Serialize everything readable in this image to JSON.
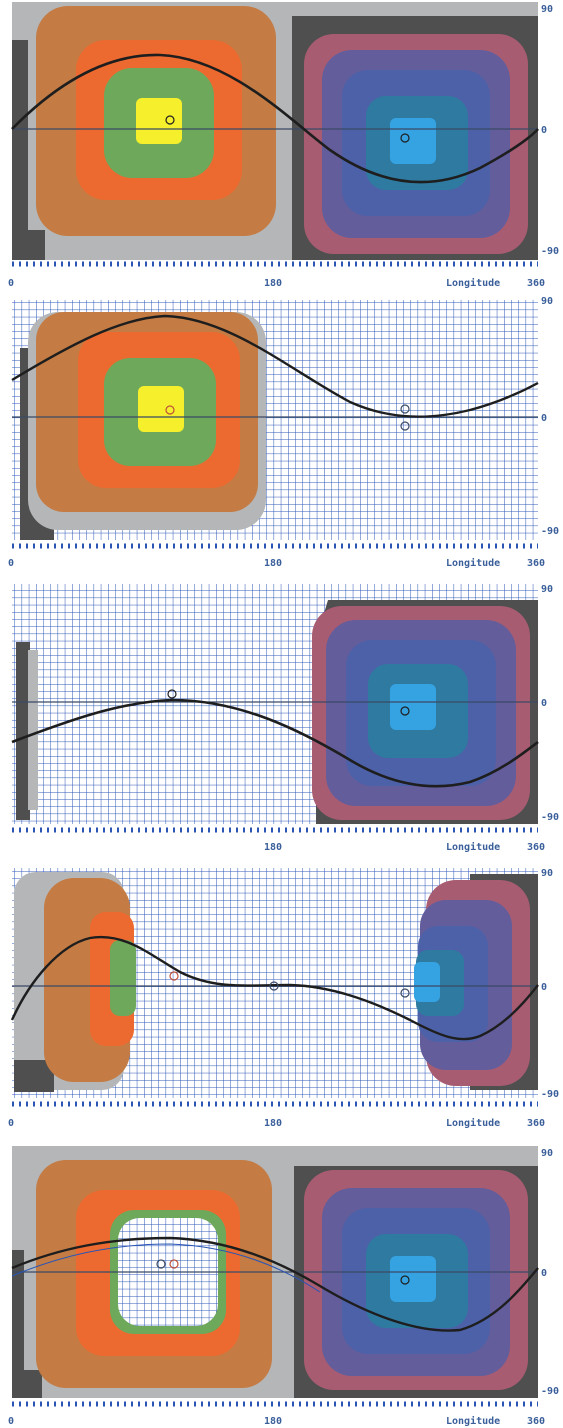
{
  "colors": {
    "dark": "#4f4f4f",
    "light_gray": "#b4b6b8",
    "tan": "#c47c44",
    "orange": "#ec6a30",
    "green": "#6ea85a",
    "yellow": "#f5ef2c",
    "mauve": "#a85c72",
    "violet": "#635d9c",
    "blue": "#4d61a8",
    "teal": "#2f7aa0",
    "cyan": "#35a2e2",
    "grid": "#2a55b5",
    "curve": "#1e1e1e"
  },
  "x_axis": {
    "ticks": [
      "0",
      "180",
      "360"
    ],
    "label": "Longitude"
  },
  "y_axis": {
    "ticks": [
      "90",
      "0",
      "-90"
    ]
  },
  "panels": [
    {
      "name": "panel-1"
    },
    {
      "name": "panel-2"
    },
    {
      "name": "panel-3"
    },
    {
      "name": "panel-4"
    },
    {
      "name": "panel-5"
    }
  ]
}
